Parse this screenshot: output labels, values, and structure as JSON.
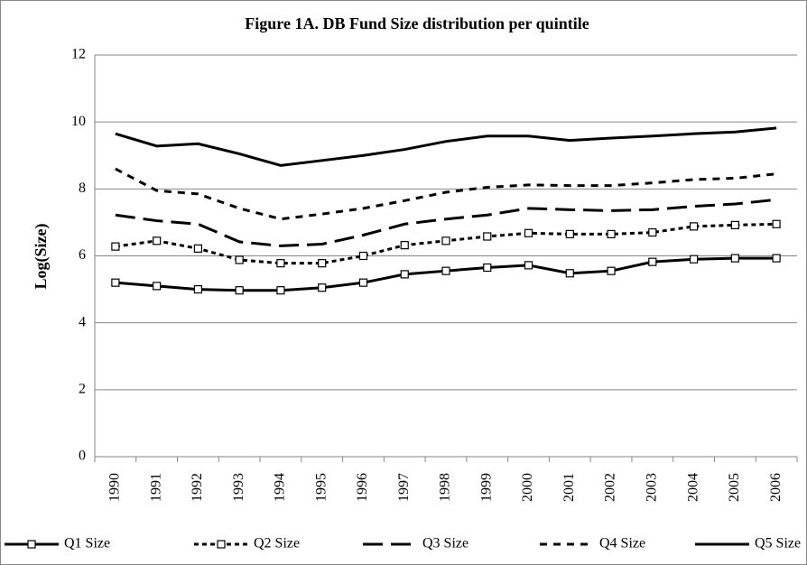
{
  "chart_data": {
    "type": "line",
    "title": "Figure 1A. DB Fund Size distribution per quintile",
    "y_label": "Log(Size)",
    "categories": [
      "1990",
      "1991",
      "1992",
      "1993",
      "1994",
      "1995",
      "1996",
      "1997",
      "1998",
      "1999",
      "2000",
      "2001",
      "2002",
      "2003",
      "2004",
      "2005",
      "2006"
    ],
    "series": [
      {
        "name": "Q1 Size",
        "color": "#000000",
        "dash": "solid",
        "marker": "square",
        "values": [
          5.2,
          5.1,
          5.0,
          4.97,
          4.97,
          5.05,
          5.2,
          5.45,
          5.55,
          5.65,
          5.72,
          5.48,
          5.55,
          5.82,
          5.9,
          5.93,
          5.93
        ]
      },
      {
        "name": "Q2 Size",
        "color": "#000000",
        "dash": "dot",
        "marker": "square",
        "values": [
          6.28,
          6.45,
          6.22,
          5.88,
          5.78,
          5.78,
          6.0,
          6.32,
          6.45,
          6.58,
          6.68,
          6.65,
          6.65,
          6.7,
          6.88,
          6.92,
          6.95
        ]
      },
      {
        "name": "Q3 Size",
        "color": "#000000",
        "dash": "longdash",
        "marker": "none",
        "values": [
          7.22,
          7.05,
          6.95,
          6.42,
          6.3,
          6.35,
          6.62,
          6.95,
          7.1,
          7.22,
          7.42,
          7.38,
          7.35,
          7.38,
          7.48,
          7.55,
          7.68
        ]
      },
      {
        "name": "Q4 Size",
        "color": "#000000",
        "dash": "dash",
        "marker": "none",
        "values": [
          8.6,
          7.95,
          7.85,
          7.42,
          7.1,
          7.25,
          7.42,
          7.65,
          7.9,
          8.05,
          8.12,
          8.1,
          8.1,
          8.18,
          8.28,
          8.32,
          8.45
        ]
      },
      {
        "name": "Q5 Size",
        "color": "#000000",
        "dash": "solid",
        "marker": "none",
        "values": [
          9.65,
          9.28,
          9.35,
          9.05,
          8.7,
          8.85,
          9.0,
          9.18,
          9.42,
          9.58,
          9.58,
          9.45,
          9.52,
          9.58,
          9.65,
          9.7,
          9.82
        ]
      }
    ],
    "ylim": [
      0,
      12
    ],
    "yticks": [
      0,
      2,
      4,
      6,
      8,
      10,
      12
    ],
    "grid": true,
    "legend": "bottom"
  }
}
